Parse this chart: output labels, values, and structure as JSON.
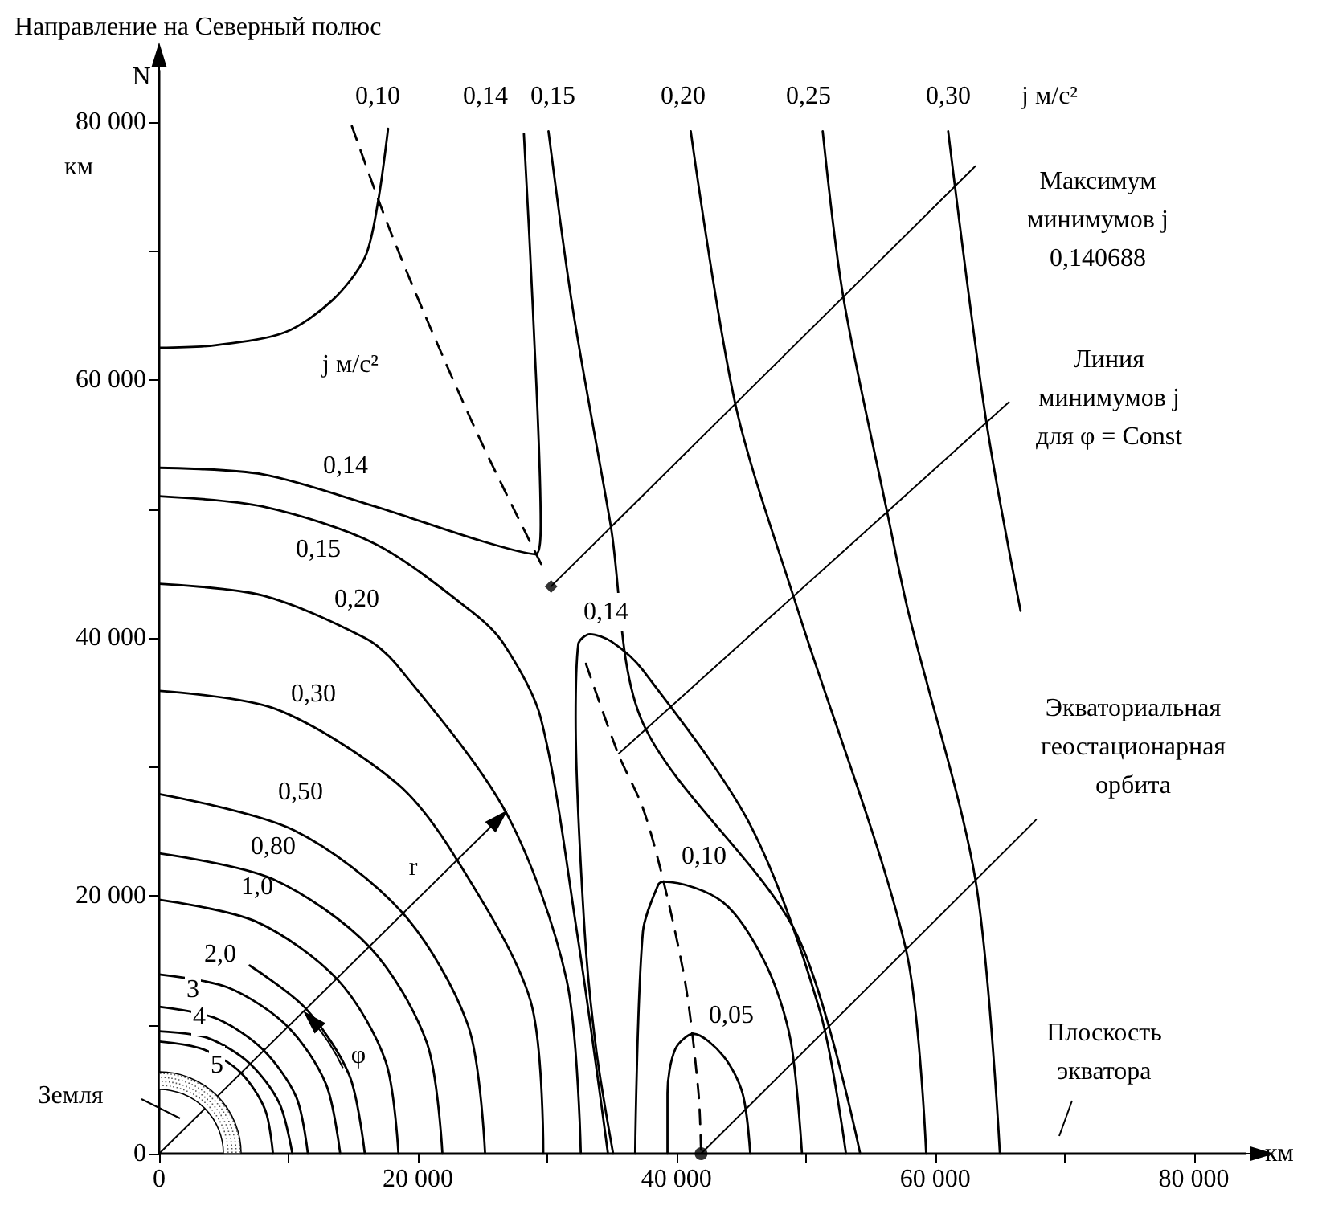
{
  "chart_data": {
    "type": "line",
    "title": "Направление на Северный полюс",
    "xlabel": "км",
    "ylabel": "км",
    "xlim": [
      0,
      84000
    ],
    "ylim": [
      0,
      84000
    ],
    "grid": false,
    "marker": "none",
    "line_style": "solid",
    "xticks": [
      {
        "value": 0,
        "label": "0"
      },
      {
        "value": 10000,
        "label": null
      },
      {
        "value": 20000,
        "label": "20 000"
      },
      {
        "value": 30000,
        "label": null
      },
      {
        "value": 40000,
        "label": "40 000"
      },
      {
        "value": 50000,
        "label": null
      },
      {
        "value": 60000,
        "label": "60 000"
      },
      {
        "value": 70000,
        "label": null
      },
      {
        "value": 80000,
        "label": "80 000"
      }
    ],
    "yticks": [
      {
        "value": 0,
        "label": "0"
      },
      {
        "value": 10000,
        "label": null
      },
      {
        "value": 20000,
        "label": "20 000"
      },
      {
        "value": 30000,
        "label": null
      },
      {
        "value": 40000,
        "label": "40 000"
      },
      {
        "value": 50000,
        "label": null
      },
      {
        "value": 60000,
        "label": "60 000"
      },
      {
        "value": 70000,
        "label": null
      },
      {
        "value": 80000,
        "label": "80 000"
      }
    ],
    "series": [
      {
        "color": "#000000",
        "x": [
          0,
          3400,
          6300,
          8200,
          8800
        ],
        "values": [
          8700,
          8100,
          6300,
          3400,
          0
        ]
      },
      {
        "color": "#000000",
        "x": [
          0,
          3700,
          7000,
          9300,
          10300
        ],
        "values": [
          9500,
          9000,
          7000,
          3900,
          0
        ]
      },
      {
        "color": "#000000",
        "x": [
          0,
          4400,
          8000,
          10600,
          11500
        ],
        "values": [
          11400,
          10500,
          8100,
          4400,
          0
        ]
      },
      {
        "color": "#000000",
        "x": [
          0,
          5300,
          9900,
          12900,
          14000
        ],
        "values": [
          13900,
          12900,
          9900,
          5400,
          0
        ]
      },
      {
        "color": "#000000",
        "x": [
          7000,
          11300,
          14700,
          15900
        ],
        "values": [
          14600,
          11300,
          6100,
          0
        ]
      },
      {
        "color": "#000000",
        "x": [
          0,
          7500,
          13800,
          17500,
          18500
        ],
        "values": [
          19700,
          18000,
          13500,
          7200,
          0
        ]
      },
      {
        "color": "#000000",
        "x": [
          0,
          8800,
          16300,
          20700,
          21900
        ],
        "values": [
          23300,
          21300,
          16000,
          8600,
          0
        ]
      },
      {
        "color": "#000000",
        "x": [
          0,
          10400,
          18800,
          23900,
          25200
        ],
        "values": [
          27900,
          25100,
          18700,
          9900,
          0
        ]
      },
      {
        "color": "#000000",
        "x": [
          0,
          9000,
          18300,
          22900,
          28700,
          29700
        ],
        "values": [
          35900,
          34500,
          28800,
          23000,
          11900,
          0
        ]
      },
      {
        "color": "#000000",
        "x": [
          0,
          8000,
          15900,
          18300,
          26800,
          31500,
          32600
        ],
        "values": [
          44200,
          43300,
          40000,
          38000,
          26500,
          13500,
          0
        ]
      },
      {
        "color": "#000000",
        "x": [
          0,
          8000,
          16700,
          24100,
          26600,
          29500,
          32300,
          34700
        ],
        "values": [
          51000,
          50200,
          47300,
          42100,
          39600,
          33800,
          17200,
          0
        ]
      },
      {
        "color": "#000000",
        "x": [
          0,
          8000,
          16700,
          25000,
          29100,
          29500,
          28900,
          28200
        ],
        "values": [
          53200,
          52700,
          50200,
          47500,
          46500,
          48800,
          65400,
          79100
        ]
      },
      {
        "color": "#000000",
        "x": [
          35100,
          33800,
          32900,
          32200,
          32400,
          33300,
          35000,
          37400,
          45700,
          51100,
          53100
        ],
        "values": [
          0,
          8000,
          17200,
          33800,
          39500,
          40300,
          39700,
          37500,
          25500,
          11000,
          0
        ]
      },
      {
        "color": "#000000",
        "x": [
          30100,
          32000,
          34900,
          37400,
          49200,
          54200
        ],
        "values": [
          79300,
          65400,
          48800,
          33400,
          17200,
          0
        ]
      },
      {
        "color": "#000000",
        "x": [
          41100,
          44600,
          49400,
          57700,
          59300
        ],
        "values": [
          79300,
          57900,
          42100,
          16000,
          0
        ]
      },
      {
        "color": "#000000",
        "x": [
          51300,
          52900,
          56400,
          57900,
          63100,
          65000
        ],
        "values": [
          79300,
          66400,
          49200,
          42100,
          21300,
          0
        ]
      },
      {
        "color": "#000000",
        "x": [
          61000,
          63900,
          66600
        ],
        "values": [
          79300,
          57100,
          42100
        ]
      },
      {
        "color": "#000000",
        "x": [
          0,
          4300,
          9700,
          13400,
          15900,
          16900,
          17700
        ],
        "values": [
          62500,
          62700,
          63700,
          66200,
          69500,
          73700,
          79500
        ]
      },
      {
        "color": "#000000",
        "x": [
          36800,
          37400,
          38600,
          39000,
          43600,
          46900,
          48800,
          49700
        ],
        "values": [
          0,
          17200,
          20900,
          21100,
          19500,
          14700,
          8900,
          0
        ]
      },
      {
        "color": "#000000",
        "x": [
          39300,
          39300,
          39900,
          41300,
          43600,
          45100,
          45700
        ],
        "values": [
          0,
          4700,
          8100,
          9300,
          7600,
          4700,
          0
        ]
      },
      {
        "color": "#000000",
        "line_style": "dashed",
        "x": [
          14900,
          17700,
          21000,
          25000,
          29700
        ],
        "values": [
          79700,
          72000,
          64000,
          55000,
          45400
        ]
      },
      {
        "color": "#000000",
        "line_style": "dashed",
        "x": [
          33000,
          35500,
          37400,
          39000,
          40700,
          41700,
          41900
        ],
        "values": [
          38000,
          31000,
          26800,
          21100,
          13100,
          4700,
          0
        ]
      },
      {
        "type": "scatter",
        "marker": "diamond",
        "color": "#000000",
        "x": [
          30300
        ],
        "values": [
          44000
        ]
      },
      {
        "type": "scatter",
        "marker": "circle",
        "color": "#000000",
        "x": [
          41900
        ],
        "values": [
          0
        ]
      },
      {
        "color": "#000000",
        "x": [
          30300,
          63100
        ],
        "values": [
          44000,
          76600
        ]
      },
      {
        "color": "#000000",
        "x": [
          41900,
          67800
        ],
        "values": [
          0,
          25900
        ]
      }
    ],
    "annotations": [
      "0,10",
      "0,14",
      "0,15",
      "0,20",
      "0,25",
      "0,30",
      "ј м/с²",
      "0,14",
      "0,15",
      "0,20",
      "0,30",
      "0,50",
      "0,80",
      "1,0",
      "2,0",
      "3",
      "4",
      "5",
      "0,14",
      "0,10",
      "0,05",
      "ј м/с²",
      "Максимум\nминимумов ј\n0,140688",
      "Линия\nминимумов ј\nдля φ = Const",
      "Экваториальная\nгеостационарная\nорбита",
      "Плоскость\nэкватора",
      "r",
      "φ",
      "N",
      "Земля"
    ]
  }
}
